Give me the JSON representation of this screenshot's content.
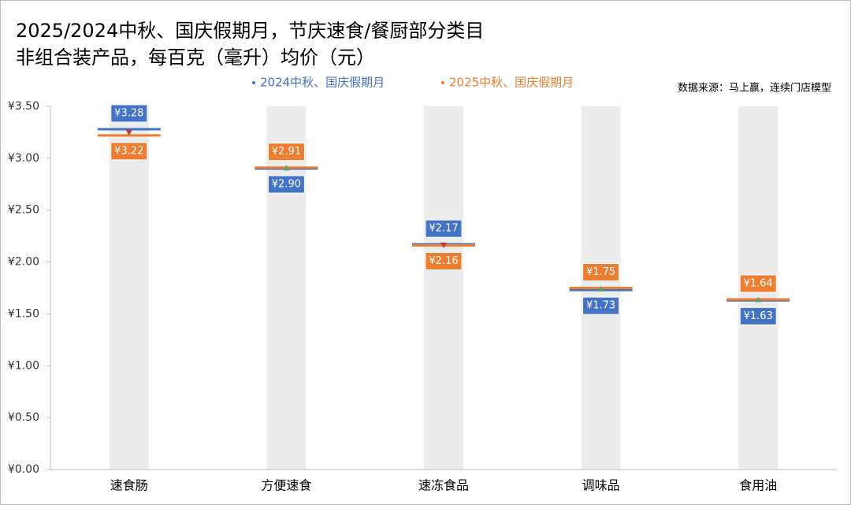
{
  "chart_data": {
    "type": "dumbbell",
    "title": [
      "2025/2024中秋、国庆假期月，节庆速食/餐厨部分类目",
      "非组合装产品，每百克（毫升）均价（元）"
    ],
    "source": "数据来源：马上赢，连续门店模型",
    "categories": [
      "速食肠",
      "方便速食",
      "速冻食品",
      "调味品",
      "食用油"
    ],
    "series": [
      {
        "name": "2024中秋、国庆假期月",
        "color": "#4472c4",
        "values": [
          3.28,
          2.9,
          2.17,
          1.73,
          1.63
        ],
        "value_labels": [
          "¥3.28",
          "¥2.90",
          "¥2.17",
          "¥1.73",
          "¥1.63"
        ]
      },
      {
        "name": "2025中秋、国庆假期月",
        "color": "#ed7d31",
        "values": [
          3.22,
          2.91,
          2.16,
          1.75,
          1.64
        ],
        "value_labels": [
          "¥3.22",
          "¥2.91",
          "¥2.16",
          "¥1.75",
          "¥1.64"
        ]
      }
    ],
    "ylim": [
      0,
      3.5
    ],
    "yticks": [
      {
        "value": 0,
        "label": "¥0.00"
      },
      {
        "value": 0.5,
        "label": "¥0.50"
      },
      {
        "value": 1,
        "label": "¥1.00"
      },
      {
        "value": 1.5,
        "label": "¥1.50"
      },
      {
        "value": 2,
        "label": "¥2.00"
      },
      {
        "value": 2.5,
        "label": "¥2.50"
      },
      {
        "value": 3,
        "label": "¥3.00"
      },
      {
        "value": 3.5,
        "label": "¥3.50"
      }
    ]
  }
}
